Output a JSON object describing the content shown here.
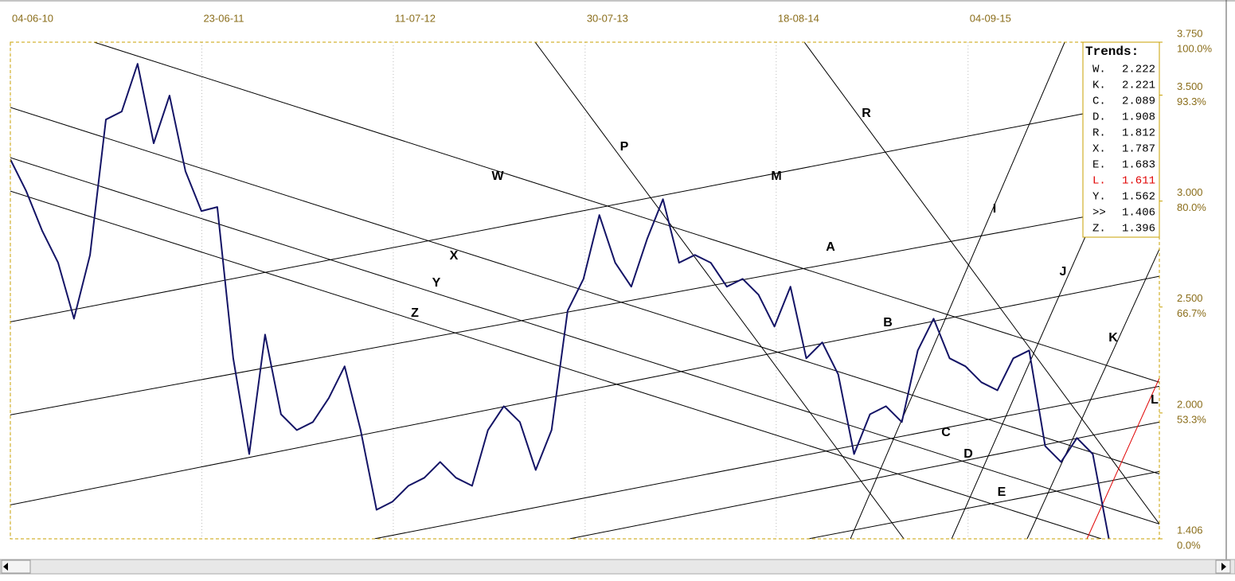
{
  "chart_data": {
    "type": "line",
    "color": "#141466",
    "x": [
      2010.42,
      2010.507,
      2010.595,
      2010.682,
      2010.769,
      2010.857,
      2010.944,
      2011.031,
      2011.118,
      2011.206,
      2011.293,
      2011.38,
      2011.468,
      2011.555,
      2011.642,
      2011.73,
      2011.817,
      2011.904,
      2011.991,
      2012.079,
      2012.166,
      2012.253,
      2012.341,
      2012.428,
      2012.515,
      2012.603,
      2012.69,
      2012.777,
      2012.864,
      2012.952,
      2013.039,
      2013.126,
      2013.214,
      2013.301,
      2013.388,
      2013.476,
      2013.563,
      2013.65,
      2013.737,
      2013.825,
      2013.912,
      2013.999,
      2014.087,
      2014.174,
      2014.261,
      2014.349,
      2014.436,
      2014.523,
      2014.61,
      2014.698,
      2014.785,
      2014.872,
      2014.96,
      2015.047,
      2015.134,
      2015.222,
      2015.309,
      2015.396,
      2015.483,
      2015.571,
      2015.658,
      2015.745,
      2015.833,
      2015.92,
      2016.007,
      2016.095,
      2016.182,
      2016.269,
      2016.356,
      2016.444
    ],
    "values": [
      3.197,
      3.047,
      2.859,
      2.709,
      2.445,
      2.746,
      3.385,
      3.423,
      3.648,
      3.273,
      3.498,
      3.141,
      2.953,
      2.972,
      2.258,
      1.806,
      2.37,
      1.994,
      1.919,
      1.957,
      2.07,
      2.22,
      1.919,
      1.543,
      1.581,
      1.656,
      1.694,
      1.769,
      1.694,
      1.656,
      1.919,
      2.032,
      1.957,
      1.731,
      1.919,
      2.483,
      2.633,
      2.934,
      2.709,
      2.596,
      2.821,
      3.009,
      2.709,
      2.746,
      2.709,
      2.596,
      2.633,
      2.558,
      2.408,
      2.596,
      2.258,
      2.333,
      2.182,
      1.806,
      1.994,
      2.032,
      1.957,
      2.295,
      2.445,
      2.258,
      2.22,
      2.145,
      2.107,
      2.258,
      2.295,
      1.844,
      1.769,
      1.882,
      1.806,
      1.406
    ],
    "xlim": [
      2010.42,
      2016.721
    ],
    "ylim": [
      1.406,
      3.75
    ],
    "xticks": [
      {
        "value": 2010.42,
        "label": "04-06-10"
      },
      {
        "value": 2011.47,
        "label": "23-06-11"
      },
      {
        "value": 2012.52,
        "label": "11-07-12"
      },
      {
        "value": 2013.572,
        "label": "30-07-13"
      },
      {
        "value": 2014.62,
        "label": "18-08-14"
      },
      {
        "value": 2015.672,
        "label": "04-09-15"
      }
    ],
    "yticks": [
      {
        "value": 3.75,
        "label": "3.750"
      },
      {
        "value": 3.5,
        "label": "3.500"
      },
      {
        "value": 3.0,
        "label": "3.000"
      },
      {
        "value": 2.5,
        "label": "2.500"
      },
      {
        "value": 2.0,
        "label": "2.000"
      },
      1.406
    ],
    "ytick_percent_labels": [
      "100.0%",
      "93.3%",
      "80.0%",
      "66.7%",
      "53.3%",
      "0.0%"
    ],
    "grid": true,
    "trend_lines": [
      {
        "label": "W",
        "color": "#000000",
        "x": [
          2010.879,
          2016.721
        ],
        "y": [
          3.75,
          2.145
        ]
      },
      {
        "label": "X",
        "color": "#000000",
        "x": [
          2010.42,
          2016.721
        ],
        "y": [
          3.442,
          1.712
        ]
      },
      {
        "label": "Y",
        "color": "#000000",
        "x": [
          2010.42,
          2016.721
        ],
        "y": [
          3.205,
          1.476
        ]
      },
      {
        "label": "Z",
        "color": "#000000",
        "x": [
          2010.42,
          2016.403
        ],
        "y": [
          3.047,
          1.406
        ]
      },
      {
        "label": "M",
        "color": "#000000",
        "x": [
          2010.42,
          2016.302
        ],
        "y": [
          2.43,
          3.412
        ]
      },
      {
        "label": "A",
        "color": "#000000",
        "x": [
          2010.42,
          2016.721
        ],
        "y": [
          1.991,
          2.991
        ]
      },
      {
        "label": "B",
        "color": "#000000",
        "x": [
          2010.42,
          2016.721
        ],
        "y": [
          1.566,
          2.645
        ]
      },
      {
        "label": "C",
        "color": "#000000",
        "x": [
          2012.416,
          2016.721
        ],
        "y": [
          1.406,
          2.126
        ]
      },
      {
        "label": "D",
        "color": "#000000",
        "x": [
          2013.486,
          2016.721
        ],
        "y": [
          1.406,
          1.957
        ]
      },
      {
        "label": "E",
        "color": "#000000",
        "x": [
          2014.796,
          2016.721
        ],
        "y": [
          1.406,
          1.724
        ]
      },
      {
        "label": "P",
        "color": "#000000",
        "x": [
          2013.298,
          2015.32
        ],
        "y": [
          3.75,
          1.406
        ]
      },
      {
        "label": "R",
        "color": "#000000",
        "x": [
          2014.774,
          2016.721
        ],
        "y": [
          3.75,
          1.476
        ]
      },
      {
        "label": "I",
        "color": "#000000",
        "x": [
          2015.027,
          2016.202
        ],
        "y": [
          1.406,
          3.75
        ]
      },
      {
        "label": "J",
        "color": "#000000",
        "x": [
          2015.582,
          2016.721
        ],
        "y": [
          1.406,
          3.622
        ]
      },
      {
        "label": "K",
        "color": "#000000",
        "x": [
          2015.996,
          2016.721
        ],
        "y": [
          1.406,
          2.773
        ]
      },
      {
        "label": "L",
        "color": "#e00000",
        "x": [
          2016.324,
          2016.721
        ],
        "y": [
          1.406,
          2.164
        ]
      }
    ],
    "trends": {
      "title": "Trends:",
      "items": [
        {
          "label": "W.",
          "value": 2.222,
          "color": "#000000"
        },
        {
          "label": "K.",
          "value": 2.221,
          "color": "#000000"
        },
        {
          "label": "C.",
          "value": 2.089,
          "color": "#000000"
        },
        {
          "label": "D.",
          "value": 1.908,
          "color": "#000000"
        },
        {
          "label": "R.",
          "value": 1.812,
          "color": "#000000"
        },
        {
          "label": "X.",
          "value": 1.787,
          "color": "#000000"
        },
        {
          "label": "E.",
          "value": 1.683,
          "color": "#000000"
        },
        {
          "label": "L.",
          "value": 1.611,
          "color": "#e00000"
        },
        {
          "label": "Y.",
          "value": 1.562,
          "color": "#000000"
        },
        {
          "label": ">>",
          "value": 1.406,
          "color": "#000000"
        },
        {
          "label": "Z.",
          "value": 1.396,
          "color": "#000000"
        }
      ]
    }
  }
}
